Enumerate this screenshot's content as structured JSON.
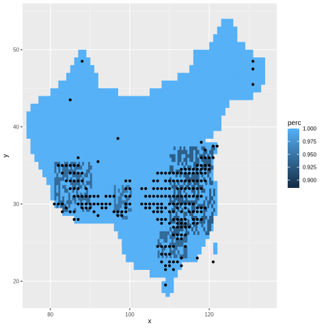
{
  "chart_data": {
    "type": "heatmap",
    "xlabel": "x",
    "ylabel": "y",
    "xlim": [
      73,
      137
    ],
    "ylim": [
      16.5,
      56
    ],
    "x_ticks": [
      80,
      100,
      120
    ],
    "y_ticks": [
      20,
      30,
      40,
      50
    ],
    "x_tick_labels": [
      "80",
      "100",
      "120"
    ],
    "y_tick_labels": [
      "20",
      "30",
      "40",
      "50"
    ],
    "grid": true,
    "legend": {
      "title": "perc",
      "position": "right",
      "range": [
        0.885,
        1.0
      ],
      "breaks": [
        1.0,
        0.975,
        0.95,
        0.925,
        0.9
      ],
      "labels": [
        "1.000",
        "0.975",
        "0.950",
        "0.925",
        "0.900"
      ],
      "color_low": "#132B43",
      "color_high": "#56B1F7"
    },
    "cell_size": 0.5,
    "tile_value_default": 1.0,
    "tile_rows": [
      {
        "y": 53.0,
        "x": [
          [
            123,
            126
          ]
        ]
      },
      {
        "y": 52.0,
        "x": [
          [
            122,
            127
          ]
        ]
      },
      {
        "y": 51.0,
        "x": [
          [
            121,
            127
          ]
        ]
      },
      {
        "y": 50.0,
        "x": [
          [
            120,
            129
          ]
        ]
      },
      {
        "y": 49.0,
        "x": [
          [
            87,
            89
          ],
          [
            116,
            131
          ]
        ]
      },
      {
        "y": 48.0,
        "x": [
          [
            86,
            90
          ],
          [
            116,
            134
          ]
        ]
      },
      {
        "y": 47.0,
        "x": [
          [
            85,
            91
          ],
          [
            115,
            134
          ]
        ]
      },
      {
        "y": 46.0,
        "x": [
          [
            84,
            92
          ],
          [
            112,
            134
          ]
        ]
      },
      {
        "y": 45.0,
        "x": [
          [
            82,
            92
          ],
          [
            108,
            133
          ]
        ]
      },
      {
        "y": 44.0,
        "x": [
          [
            80,
            97
          ],
          [
            105,
            131
          ]
        ]
      },
      {
        "y": 43.0,
        "x": [
          [
            77,
            125
          ]
        ]
      },
      {
        "y": 42.0,
        "x": [
          [
            75,
            124
          ]
        ]
      },
      {
        "y": 41.0,
        "x": [
          [
            74,
            123
          ]
        ]
      },
      {
        "y": 40.0,
        "x": [
          [
            74,
            123
          ]
        ]
      },
      {
        "y": 39.0,
        "x": [
          [
            74,
            121
          ]
        ]
      },
      {
        "y": 38.0,
        "x": [
          [
            75,
            119
          ]
        ]
      },
      {
        "y": 37.0,
        "x": [
          [
            75,
            122
          ]
        ]
      },
      {
        "y": 36.0,
        "x": [
          [
            76,
            121
          ]
        ]
      },
      {
        "y": 35.0,
        "x": [
          [
            77,
            121
          ]
        ]
      },
      {
        "y": 34.0,
        "x": [
          [
            78,
            121
          ]
        ]
      },
      {
        "y": 33.0,
        "x": [
          [
            79,
            121
          ]
        ]
      },
      {
        "y": 32.0,
        "x": [
          [
            80,
            122
          ]
        ]
      },
      {
        "y": 31.0,
        "x": [
          [
            80,
            122
          ]
        ]
      },
      {
        "y": 30.0,
        "x": [
          [
            81,
            122
          ]
        ]
      },
      {
        "y": 29.0,
        "x": [
          [
            83,
            122
          ]
        ]
      },
      {
        "y": 28.0,
        "x": [
          [
            86,
            121
          ]
        ]
      },
      {
        "y": 27.0,
        "x": [
          [
            96,
            121
          ]
        ]
      },
      {
        "y": 26.0,
        "x": [
          [
            97,
            120
          ]
        ]
      },
      {
        "y": 25.0,
        "x": [
          [
            98,
            119
          ]
        ]
      },
      {
        "y": 24.0,
        "x": [
          [
            98,
            118
          ],
          [
            121,
            122
          ]
        ]
      },
      {
        "y": 23.0,
        "x": [
          [
            99,
            117
          ]
        ]
      },
      {
        "y": 22.0,
        "x": [
          [
            101,
            113
          ]
        ]
      },
      {
        "y": 21.0,
        "x": [
          [
            105,
            112
          ]
        ]
      },
      {
        "y": 20.0,
        "x": [
          [
            109,
            111
          ]
        ]
      },
      {
        "y": 19.0,
        "x": [
          [
            108,
            111
          ]
        ]
      },
      {
        "y": 18.5,
        "x": [
          [
            109,
            110
          ]
        ]
      }
    ],
    "dark_regions": [
      {
        "x": [
          110,
          121
        ],
        "y": [
          26,
          37
        ],
        "value": 0.93
      },
      {
        "x": [
          81,
          90
        ],
        "y": [
          29,
          35
        ],
        "value": 0.94
      },
      {
        "x": [
          96,
          100
        ],
        "y": [
          28,
          32
        ],
        "value": 0.95
      },
      {
        "x": [
          107,
          114
        ],
        "y": [
          23,
          26
        ],
        "value": 0.94
      }
    ],
    "points": [
      [
        88,
        48.5
      ],
      [
        131,
        48.5
      ],
      [
        131,
        47.5
      ],
      [
        131,
        45.5
      ],
      [
        85,
        43.5
      ],
      [
        97,
        38.5
      ],
      [
        121,
        37.5
      ],
      [
        122,
        37.5
      ],
      [
        118,
        38
      ],
      [
        119,
        37
      ],
      [
        87,
        36
      ],
      [
        92,
        35.5
      ],
      [
        82,
        35
      ],
      [
        83,
        35
      ],
      [
        84,
        35
      ],
      [
        85,
        35
      ],
      [
        86,
        35
      ],
      [
        87,
        35
      ],
      [
        83,
        34
      ],
      [
        85,
        34
      ],
      [
        86,
        34
      ],
      [
        87,
        34
      ],
      [
        88,
        34
      ],
      [
        84,
        33
      ],
      [
        85,
        33
      ],
      [
        86,
        33
      ],
      [
        87,
        33
      ],
      [
        88,
        33
      ],
      [
        85,
        32
      ],
      [
        86,
        32
      ],
      [
        87,
        32
      ],
      [
        89,
        32
      ],
      [
        86,
        31
      ],
      [
        87,
        31
      ],
      [
        88,
        31
      ],
      [
        89,
        31
      ],
      [
        90,
        31
      ],
      [
        91,
        31
      ],
      [
        92,
        31
      ],
      [
        94,
        31
      ],
      [
        95,
        31
      ],
      [
        96,
        31
      ],
      [
        99,
        31
      ],
      [
        100,
        31
      ],
      [
        81,
        30
      ],
      [
        82,
        30
      ],
      [
        83,
        30
      ],
      [
        87,
        30
      ],
      [
        88,
        30
      ],
      [
        89,
        30
      ],
      [
        90,
        30
      ],
      [
        91,
        30
      ],
      [
        92,
        30
      ],
      [
        93,
        30
      ],
      [
        94,
        30
      ],
      [
        95,
        30
      ],
      [
        99,
        30
      ],
      [
        100,
        30
      ],
      [
        84,
        29.5
      ],
      [
        88,
        29.5
      ],
      [
        89,
        29.5
      ],
      [
        90,
        29.5
      ],
      [
        93,
        29.5
      ],
      [
        94,
        29.5
      ],
      [
        99,
        29.5
      ],
      [
        83,
        29
      ],
      [
        85,
        29
      ],
      [
        86,
        29
      ],
      [
        91,
        29
      ],
      [
        96,
        29
      ],
      [
        97,
        29
      ],
      [
        98,
        29
      ],
      [
        99,
        29
      ],
      [
        86,
        28
      ],
      [
        87,
        28
      ],
      [
        92,
        28.5
      ],
      [
        97,
        28.5
      ],
      [
        98,
        28.5
      ],
      [
        99,
        32
      ],
      [
        100,
        32
      ],
      [
        99,
        33
      ],
      [
        100,
        33
      ],
      [
        118,
        36
      ],
      [
        119,
        36
      ],
      [
        120,
        36
      ],
      [
        121,
        36
      ],
      [
        117,
        35
      ],
      [
        118,
        35
      ],
      [
        119,
        35
      ],
      [
        120,
        35
      ],
      [
        113,
        34.5
      ],
      [
        114,
        34.5
      ],
      [
        115,
        34.5
      ],
      [
        116,
        34.5
      ],
      [
        117,
        34.5
      ],
      [
        118,
        34.5
      ],
      [
        119,
        34.5
      ],
      [
        120,
        34.5
      ],
      [
        107,
        34
      ],
      [
        108,
        34
      ],
      [
        109,
        34
      ],
      [
        110,
        34
      ],
      [
        111,
        34
      ],
      [
        112,
        34
      ],
      [
        113,
        34
      ],
      [
        114,
        34
      ],
      [
        115,
        34
      ],
      [
        116,
        34
      ],
      [
        117,
        34
      ],
      [
        118,
        34
      ],
      [
        119,
        34
      ],
      [
        106,
        33
      ],
      [
        107,
        33
      ],
      [
        109,
        33
      ],
      [
        110,
        33
      ],
      [
        111,
        33
      ],
      [
        112,
        33
      ],
      [
        113,
        33
      ],
      [
        114,
        33
      ],
      [
        115,
        33
      ],
      [
        116,
        33
      ],
      [
        117,
        33
      ],
      [
        118,
        33
      ],
      [
        119,
        33
      ],
      [
        103,
        32
      ],
      [
        104,
        32
      ],
      [
        106,
        32
      ],
      [
        107,
        32
      ],
      [
        108,
        32
      ],
      [
        109,
        32
      ],
      [
        110,
        32
      ],
      [
        112,
        32
      ],
      [
        113,
        32
      ],
      [
        114,
        32
      ],
      [
        115,
        32
      ],
      [
        116,
        32
      ],
      [
        117,
        32
      ],
      [
        118,
        32
      ],
      [
        104,
        31
      ],
      [
        105,
        31
      ],
      [
        106,
        31
      ],
      [
        107,
        31
      ],
      [
        108,
        31
      ],
      [
        109,
        31
      ],
      [
        110,
        31
      ],
      [
        111,
        31
      ],
      [
        112,
        31
      ],
      [
        113,
        31
      ],
      [
        114,
        31
      ],
      [
        115,
        31
      ],
      [
        116,
        31
      ],
      [
        117,
        31
      ],
      [
        118,
        31
      ],
      [
        103,
        30
      ],
      [
        104,
        30
      ],
      [
        105,
        30
      ],
      [
        106,
        30
      ],
      [
        107,
        30
      ],
      [
        108,
        30
      ],
      [
        110,
        30
      ],
      [
        111,
        30
      ],
      [
        112,
        30
      ],
      [
        113,
        30
      ],
      [
        114,
        30
      ],
      [
        115,
        30
      ],
      [
        116,
        30
      ],
      [
        104,
        29.5
      ],
      [
        105,
        29.5
      ],
      [
        107,
        29.5
      ],
      [
        108,
        29.5
      ],
      [
        109,
        29.5
      ],
      [
        112,
        29.5
      ],
      [
        114,
        29.5
      ],
      [
        117,
        29.5
      ],
      [
        118,
        29.5
      ],
      [
        119,
        29.5
      ],
      [
        106,
        29
      ],
      [
        107,
        29
      ],
      [
        108,
        29
      ],
      [
        110,
        29
      ],
      [
        111,
        29
      ],
      [
        113,
        29
      ],
      [
        115,
        29
      ],
      [
        116,
        29
      ],
      [
        117,
        29
      ],
      [
        118,
        29
      ],
      [
        107,
        28
      ],
      [
        108,
        28
      ],
      [
        109,
        28
      ],
      [
        111,
        28
      ],
      [
        112,
        28
      ],
      [
        113,
        28
      ],
      [
        114,
        28
      ],
      [
        116,
        28
      ],
      [
        117,
        28
      ],
      [
        118,
        28
      ],
      [
        108,
        27.5
      ],
      [
        110,
        27.5
      ],
      [
        112,
        27.5
      ],
      [
        113,
        27.5
      ],
      [
        114,
        27.5
      ],
      [
        116,
        27.5
      ],
      [
        117,
        27.5
      ],
      [
        111,
        27
      ],
      [
        112,
        27
      ],
      [
        113,
        27
      ],
      [
        114,
        27
      ],
      [
        115,
        27
      ],
      [
        111,
        26
      ],
      [
        112,
        26
      ],
      [
        113,
        26
      ],
      [
        114,
        26
      ],
      [
        112,
        25.5
      ],
      [
        113,
        25.5
      ],
      [
        107,
        24.5
      ],
      [
        108,
        24.5
      ],
      [
        109,
        24.5
      ],
      [
        110,
        24.5
      ],
      [
        111,
        24.5
      ],
      [
        114,
        24.5
      ],
      [
        108,
        23.5
      ],
      [
        109,
        23.5
      ],
      [
        110,
        23.5
      ],
      [
        113,
        23
      ],
      [
        117,
        23
      ],
      [
        110,
        22.5
      ],
      [
        111,
        22.5
      ],
      [
        108,
        22.5
      ],
      [
        112,
        22.5
      ],
      [
        121,
        22.5
      ],
      [
        109,
        22
      ],
      [
        110,
        22
      ],
      [
        113,
        22
      ],
      [
        109,
        21.5
      ],
      [
        111,
        21.5
      ],
      [
        109,
        19.5
      ]
    ]
  }
}
